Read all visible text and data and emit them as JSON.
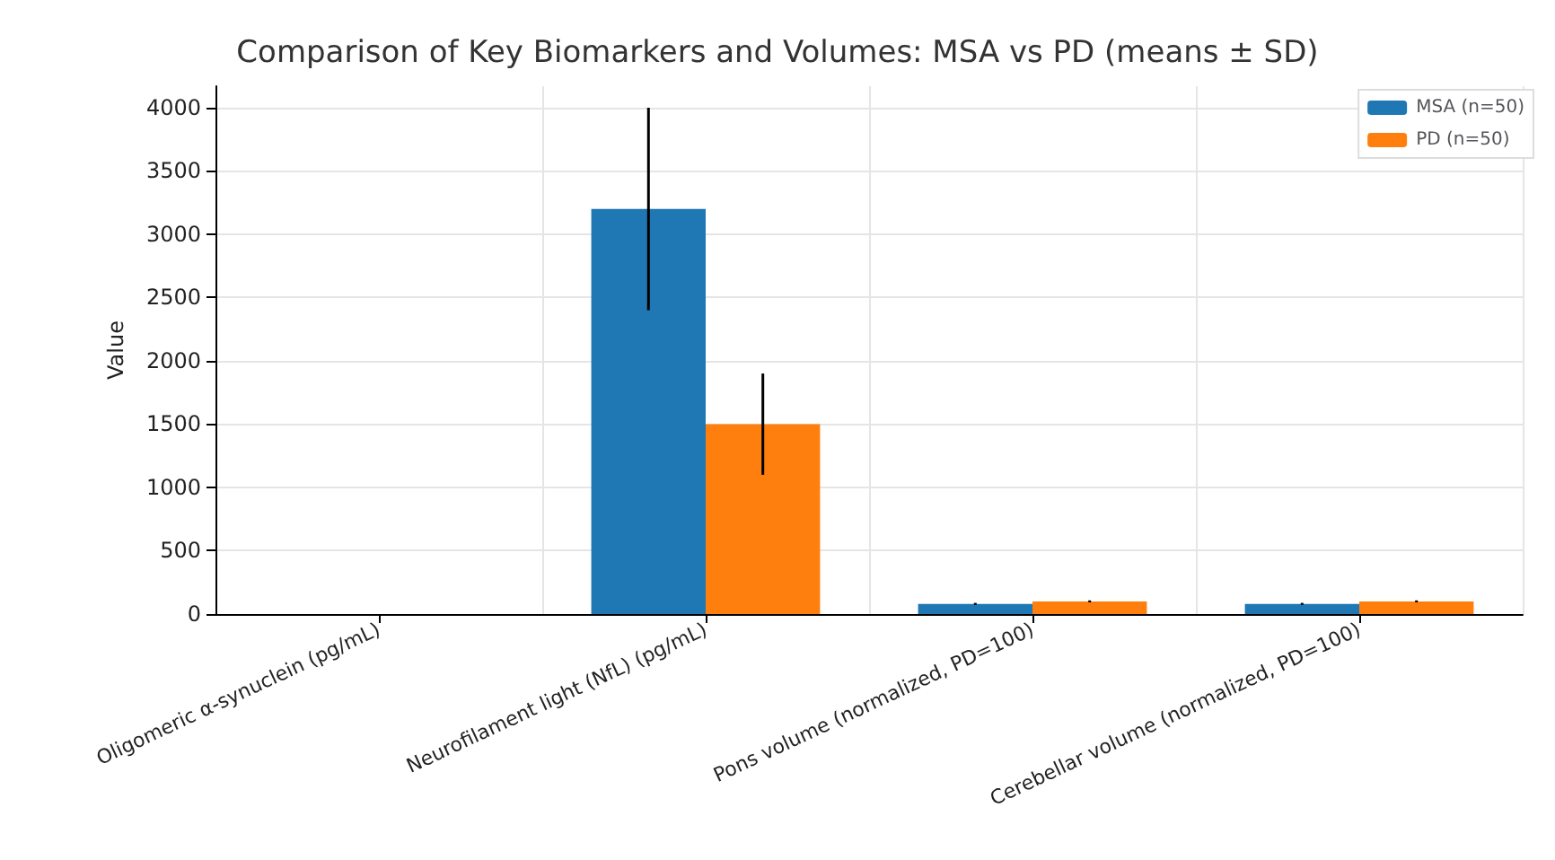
{
  "chart_data": {
    "type": "bar",
    "title": "Comparison of Key Biomarkers and Volumes: MSA vs PD (means ± SD)",
    "ylabel": "Value",
    "categories": [
      "Oligomeric α-synuclein (pg/mL)",
      "Neurofilament light (NfL) (pg/mL)",
      "Pons volume (normalized, PD=100)",
      "Cerebellar volume (normalized, PD=100)"
    ],
    "series": [
      {
        "name": "MSA (n=50)",
        "color": "#1f77b4",
        "values": [
          0,
          3200,
          80,
          80
        ],
        "errors": [
          null,
          800,
          8,
          8
        ]
      },
      {
        "name": "PD (n=50)",
        "color": "#ff7f0e",
        "values": [
          0,
          1500,
          100,
          100
        ],
        "errors": [
          null,
          400,
          8,
          8
        ]
      }
    ],
    "ylim": [
      0,
      4170
    ],
    "yticks": [
      0,
      500,
      1000,
      1500,
      2000,
      2500,
      3000,
      3500,
      4000
    ],
    "grid": true,
    "legend": "top right"
  }
}
